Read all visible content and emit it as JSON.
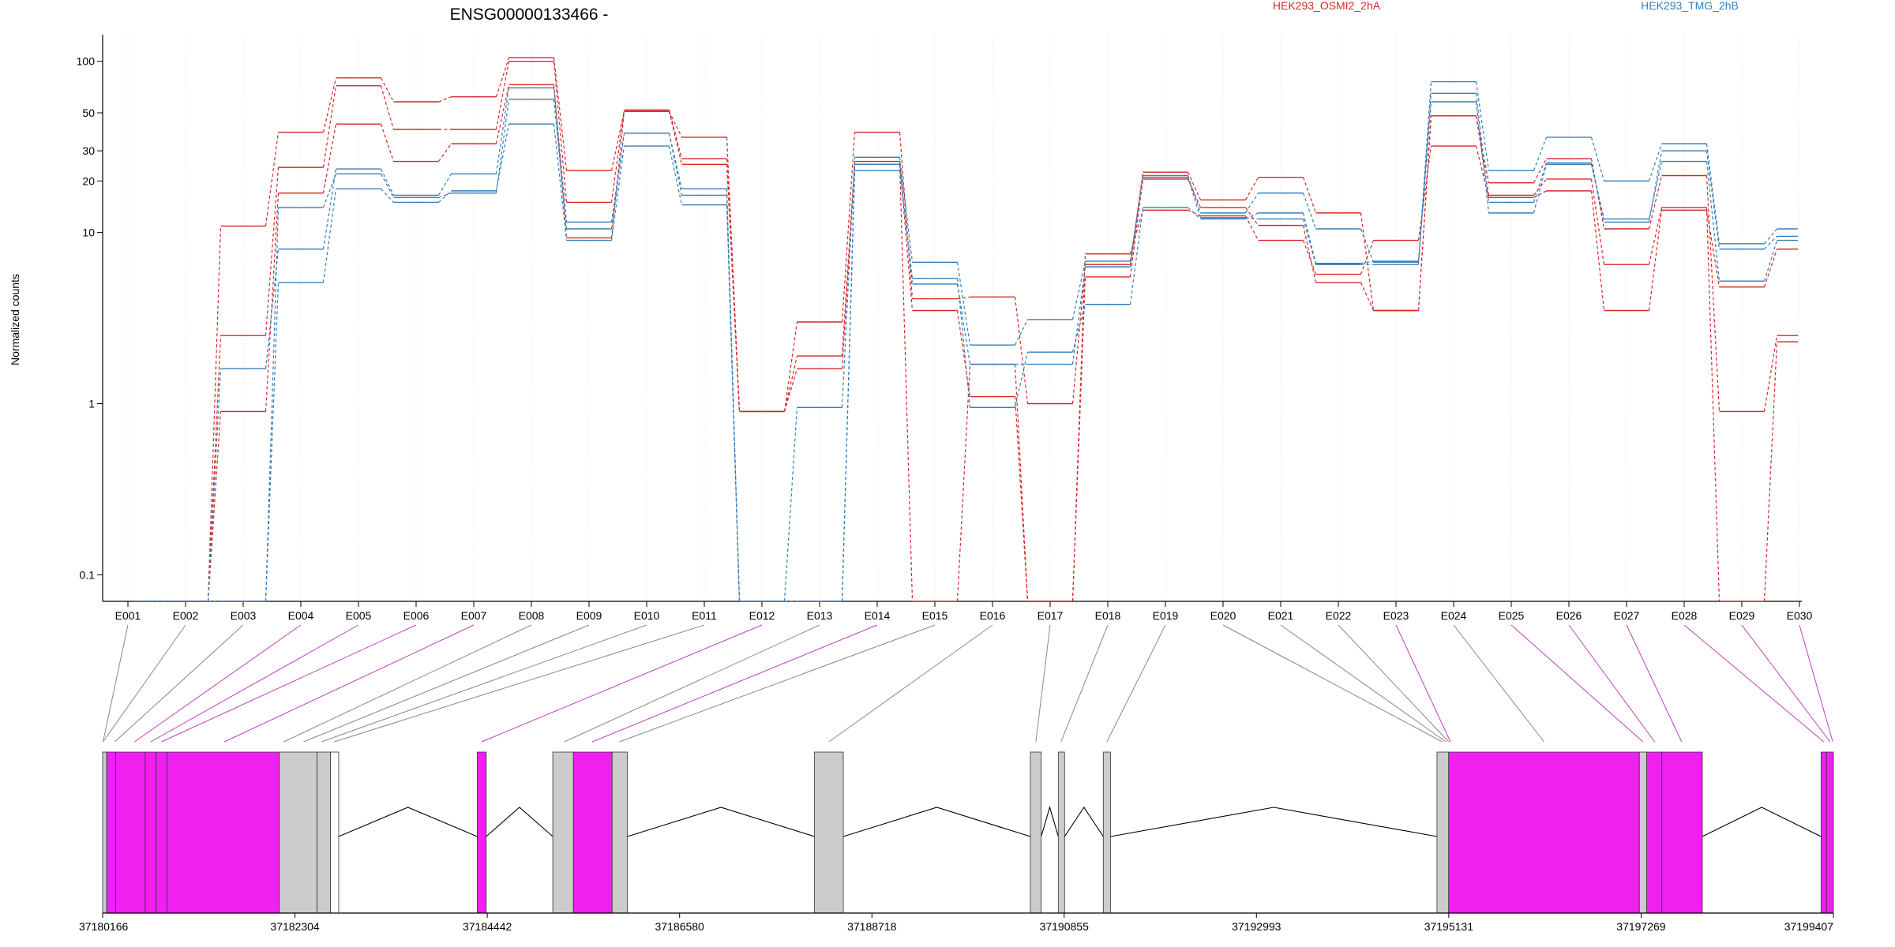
{
  "chart_data": {
    "type": "line",
    "title": "ENSG00000133466 -",
    "ylabel": "Normalized counts",
    "y_scale": "log",
    "yticks": [
      "0.1",
      "1",
      "10",
      "20",
      "30",
      "50",
      "100"
    ],
    "ylim": [
      0.07,
      140
    ],
    "floor_value": 0.07,
    "colors": {
      "HEK293_OSMI2_2hA": "#d62728",
      "HEK293_TMG_2hB": "#377eb8",
      "gene_body_connector": "#000000",
      "exonic_bin": "#f020f0",
      "intronic_bin": "#cccccc"
    },
    "categories": [
      "E001",
      "E002",
      "E003",
      "E004",
      "E005",
      "E006",
      "E007",
      "E008",
      "E009",
      "E010",
      "E011",
      "E012",
      "E013",
      "E014",
      "E015",
      "E016",
      "E017",
      "E018",
      "E019",
      "E020",
      "E021",
      "E022",
      "E023",
      "E024",
      "E025",
      "E026",
      "E027",
      "E028",
      "E029",
      "E030"
    ],
    "legend": [
      "HEK293_OSMI2_2hA",
      "HEK293_TMG_2hB"
    ],
    "series": [
      {
        "name": "HEK293_OSMI2_2hA",
        "values": [
          0.07,
          0.07,
          10.9,
          38.5,
          80.0,
          58.0,
          62.0,
          105.0,
          23.0,
          51.0,
          36.0,
          0.9,
          3.0,
          38.5,
          4.1,
          4.2,
          1.0,
          6.5,
          22.5,
          15.5,
          21.0,
          13.0,
          3.5,
          48.0,
          19.5,
          27.0,
          10.5,
          21.5,
          0.9,
          2.5
        ]
      },
      {
        "name": "HEK293_OSMI2_2hA",
        "values": [
          0.07,
          0.07,
          2.5,
          24.0,
          72.0,
          40.0,
          40.0,
          100.0,
          15.0,
          52.0,
          27.0,
          0.9,
          1.9,
          26.0,
          3.5,
          1.1,
          0.07,
          5.5,
          20.5,
          14.0,
          11.0,
          5.1,
          3.5,
          48.0,
          16.5,
          20.5,
          6.5,
          14.0,
          0.07,
          2.3
        ]
      },
      {
        "name": "HEK293_OSMI2_2hA",
        "values": [
          0.07,
          0.07,
          0.9,
          17.0,
          43.0,
          26.0,
          33.0,
          73.0,
          9.3,
          51.0,
          25.0,
          0.9,
          1.6,
          25.0,
          0.07,
          1.7,
          0.07,
          7.5,
          13.5,
          12.5,
          9.0,
          5.7,
          9.0,
          32.0,
          16.0,
          17.5,
          3.5,
          13.5,
          4.8,
          8.0
        ]
      },
      {
        "name": "HEK293_TMG_2hB",
        "values": [
          0.07,
          0.07,
          1.6,
          8.0,
          23.5,
          16.5,
          22.0,
          70.0,
          11.5,
          38.0,
          18.0,
          0.07,
          0.95,
          27.5,
          6.7,
          2.2,
          3.1,
          6.8,
          21.5,
          13.0,
          17.0,
          10.5,
          6.7,
          76.0,
          23.0,
          36.0,
          20.0,
          33.0,
          8.6,
          10.5
        ]
      },
      {
        "name": "HEK293_TMG_2hB",
        "values": [
          0.07,
          0.07,
          0.07,
          14.0,
          22.0,
          16.0,
          17.0,
          60.0,
          10.5,
          38.0,
          16.5,
          0.07,
          0.07,
          25.0,
          5.0,
          1.7,
          1.7,
          6.3,
          21.0,
          12.2,
          12.0,
          6.5,
          6.5,
          65.0,
          15.0,
          25.5,
          11.5,
          30.0,
          8.0,
          9.5
        ]
      },
      {
        "name": "HEK293_TMG_2hB",
        "values": [
          0.07,
          0.07,
          0.07,
          5.1,
          18.0,
          15.0,
          17.5,
          43.0,
          9.0,
          32.0,
          14.5,
          0.07,
          0.07,
          23.0,
          5.4,
          0.95,
          2.0,
          3.8,
          14.0,
          12.0,
          13.0,
          6.6,
          6.8,
          58.0,
          13.0,
          25.0,
          12.0,
          26.0,
          5.2,
          9.0
        ]
      }
    ],
    "gene_model": {
      "coordinates": [
        "37180166",
        "37182304",
        "37184442",
        "37186580",
        "37188718",
        "37190855",
        "37192993",
        "37195131",
        "37197269",
        "37199407"
      ],
      "coord_range": [
        37180166,
        37199407
      ],
      "bins": [
        {
          "s": 37180166,
          "e": 37180210,
          "type": "intronic_bin"
        },
        {
          "s": 37180210,
          "e": 37180310,
          "type": "exonic_bin"
        },
        {
          "s": 37180310,
          "e": 37180640,
          "type": "exonic_bin"
        },
        {
          "s": 37180640,
          "e": 37180760,
          "type": "exonic_bin"
        },
        {
          "s": 37180760,
          "e": 37180880,
          "type": "exonic_bin"
        },
        {
          "s": 37180880,
          "e": 37182130,
          "type": "exonic_bin"
        },
        {
          "s": 37182130,
          "e": 37182550,
          "type": "intronic_bin"
        },
        {
          "s": 37182550,
          "e": 37182700,
          "type": "intronic_bin"
        },
        {
          "s": 37182700,
          "e": 37182790,
          "type": "no_fill_bin"
        },
        {
          "s": 37184330,
          "e": 37184430,
          "type": "exonic_bin"
        },
        {
          "s": 37185170,
          "e": 37185400,
          "type": "intronic_bin"
        },
        {
          "s": 37185400,
          "e": 37185830,
          "type": "exonic_bin"
        },
        {
          "s": 37185830,
          "e": 37186000,
          "type": "intronic_bin"
        },
        {
          "s": 37188080,
          "e": 37188400,
          "type": "intronic_bin"
        },
        {
          "s": 37190480,
          "e": 37190600,
          "type": "intronic_bin"
        },
        {
          "s": 37190790,
          "e": 37190860,
          "type": "intronic_bin"
        },
        {
          "s": 37191290,
          "e": 37191370,
          "type": "intronic_bin"
        },
        {
          "s": 37195000,
          "e": 37195130,
          "type": "intronic_bin"
        },
        {
          "s": 37195130,
          "e": 37197250,
          "type": "exonic_bin"
        },
        {
          "s": 37197250,
          "e": 37197330,
          "type": "intronic_bin"
        },
        {
          "s": 37197330,
          "e": 37197500,
          "type": "exonic_bin"
        },
        {
          "s": 37197500,
          "e": 37197950,
          "type": "exonic_bin"
        },
        {
          "s": 37199270,
          "e": 37199330,
          "type": "exonic_bin"
        },
        {
          "s": 37199330,
          "e": 37199407,
          "type": "exonic_bin"
        }
      ],
      "introns": [
        [
          37182790,
          37184330
        ],
        [
          37184430,
          37185170
        ],
        [
          37186000,
          37188080
        ],
        [
          37188400,
          37190480
        ],
        [
          37190600,
          37190790
        ],
        [
          37190860,
          37191290
        ],
        [
          37191370,
          37195000
        ],
        [
          37197950,
          37199270
        ]
      ],
      "exon_map": [
        {
          "exon": "E001",
          "at": 37180170,
          "color": "#888888"
        },
        {
          "exon": "E002",
          "at": 37180170,
          "color": "#888888"
        },
        {
          "exon": "E003",
          "at": 37180300,
          "color": "#888888"
        },
        {
          "exon": "E004",
          "at": 37180520,
          "color": "#c040c0"
        },
        {
          "exon": "E005",
          "at": 37180700,
          "color": "#c040c0"
        },
        {
          "exon": "E006",
          "at": 37180820,
          "color": "#c040c0"
        },
        {
          "exon": "E007",
          "at": 37181520,
          "color": "#c040c0"
        },
        {
          "exon": "E008",
          "at": 37182180,
          "color": "#888888"
        },
        {
          "exon": "E009",
          "at": 37182400,
          "color": "#888888"
        },
        {
          "exon": "E010",
          "at": 37182600,
          "color": "#888888"
        },
        {
          "exon": "E011",
          "at": 37182740,
          "color": "#888888"
        },
        {
          "exon": "E012",
          "at": 37184380,
          "color": "#c040c0"
        },
        {
          "exon": "E013",
          "at": 37185300,
          "color": "#888888"
        },
        {
          "exon": "E014",
          "at": 37185610,
          "color": "#c040c0"
        },
        {
          "exon": "E015",
          "at": 37185910,
          "color": "#888888"
        },
        {
          "exon": "E016",
          "at": 37188240,
          "color": "#888888"
        },
        {
          "exon": "E017",
          "at": 37190540,
          "color": "#888888"
        },
        {
          "exon": "E018",
          "at": 37190820,
          "color": "#888888"
        },
        {
          "exon": "E019",
          "at": 37191330,
          "color": "#888888"
        },
        {
          "exon": "E020",
          "at": 37195060,
          "color": "#888888"
        },
        {
          "exon": "E021",
          "at": 37195100,
          "color": "#888888"
        },
        {
          "exon": "E022",
          "at": 37195130,
          "color": "#888888"
        },
        {
          "exon": "E023",
          "at": 37195150,
          "color": "#c040c0"
        },
        {
          "exon": "E024",
          "at": 37196190,
          "color": "#888888"
        },
        {
          "exon": "E025",
          "at": 37197290,
          "color": "#c040c0"
        },
        {
          "exon": "E026",
          "at": 37197420,
          "color": "#c040c0"
        },
        {
          "exon": "E027",
          "at": 37197720,
          "color": "#c040c0"
        },
        {
          "exon": "E028",
          "at": 37199300,
          "color": "#c040c0"
        },
        {
          "exon": "E029",
          "at": 37199370,
          "color": "#c040c0"
        },
        {
          "exon": "E030",
          "at": 37199400,
          "color": "#c040c0"
        }
      ]
    }
  }
}
